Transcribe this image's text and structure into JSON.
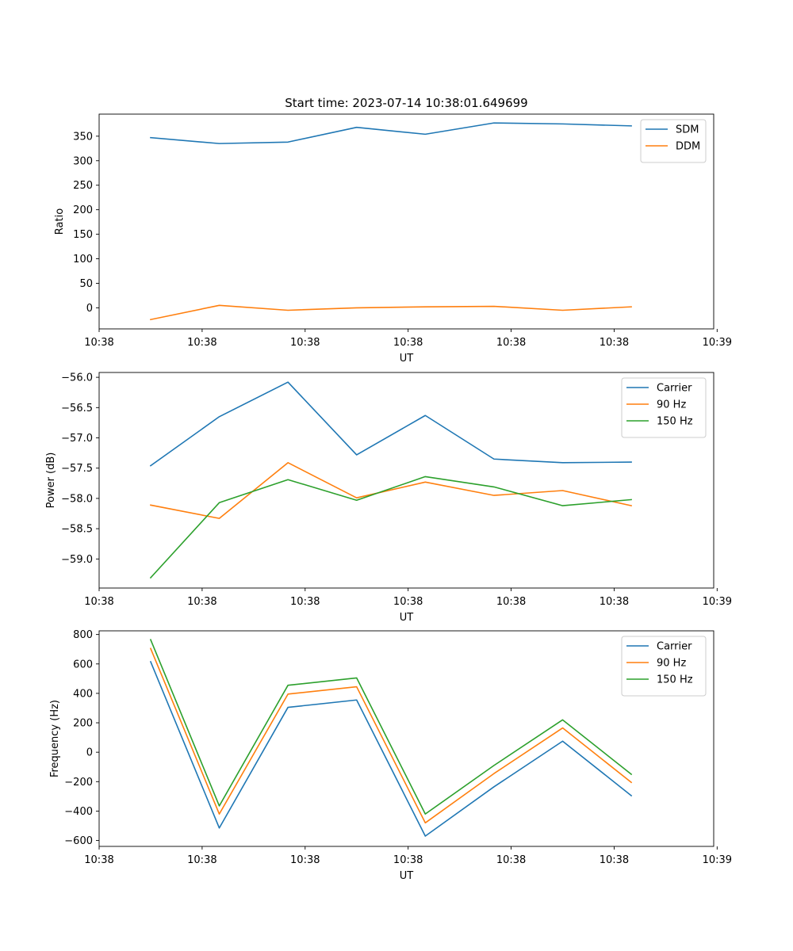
{
  "chart_data": [
    {
      "type": "line",
      "title": "Start time: 2023-07-14 10:38:01.649699",
      "xlabel": "UT",
      "ylabel": "Ratio",
      "x": [
        0,
        1,
        2,
        3,
        4,
        5,
        6,
        7
      ],
      "xlim": [
        -0.75,
        8.2
      ],
      "xticks": [
        -0.75,
        0.75,
        2.25,
        3.75,
        5.25,
        6.75,
        8.25
      ],
      "xtick_labels": [
        "10:38",
        "10:38",
        "10:38",
        "10:38",
        "10:38",
        "10:38",
        "10:39"
      ],
      "ylim": [
        -43,
        395
      ],
      "yticks": [
        0,
        50,
        100,
        150,
        200,
        250,
        300,
        350
      ],
      "legend": "top-right",
      "series": [
        {
          "name": "SDM",
          "color": "#1f77b4",
          "values": [
            347,
            335,
            338,
            368,
            354,
            377,
            375,
            371
          ]
        },
        {
          "name": "DDM",
          "color": "#ff7f0e",
          "values": [
            -24,
            5,
            -5,
            0,
            2,
            3,
            -5,
            2
          ]
        }
      ]
    },
    {
      "type": "line",
      "title": "",
      "xlabel": "UT",
      "ylabel": "Power (dB)",
      "x": [
        0,
        1,
        2,
        3,
        4,
        5,
        6,
        7
      ],
      "xlim": [
        -0.75,
        8.2
      ],
      "xticks": [
        -0.75,
        0.75,
        2.25,
        3.75,
        5.25,
        6.75,
        8.25
      ],
      "xtick_labels": [
        "10:38",
        "10:38",
        "10:38",
        "10:38",
        "10:38",
        "10:38",
        "10:39"
      ],
      "ylim": [
        -59.48,
        -55.92
      ],
      "yticks": [
        -56.0,
        -56.5,
        -57.0,
        -57.5,
        -58.0,
        -58.5,
        -59.0
      ],
      "ytick_labels": [
        "−56.0",
        "−56.5",
        "−57.0",
        "−57.5",
        "−58.0",
        "−58.5",
        "−59.0"
      ],
      "legend": "top-right",
      "series": [
        {
          "name": "Carrier",
          "color": "#1f77b4",
          "values": [
            -57.46,
            -56.65,
            -56.08,
            -57.28,
            -56.63,
            -57.35,
            -57.41,
            -57.4
          ]
        },
        {
          "name": "90 Hz",
          "color": "#ff7f0e",
          "values": [
            -58.11,
            -58.33,
            -57.41,
            -57.99,
            -57.73,
            -57.95,
            -57.87,
            -58.12
          ]
        },
        {
          "name": "150 Hz",
          "color": "#2ca02c",
          "values": [
            -59.31,
            -58.07,
            -57.69,
            -58.03,
            -57.64,
            -57.81,
            -58.12,
            -58.02
          ]
        }
      ]
    },
    {
      "type": "line",
      "title": "",
      "xlabel": "UT",
      "ylabel": "Frequency (Hz)",
      "x": [
        0,
        1,
        2,
        3,
        4,
        5,
        6,
        7
      ],
      "xlim": [
        -0.75,
        8.2
      ],
      "xticks": [
        -0.75,
        0.75,
        2.25,
        3.75,
        5.25,
        6.75,
        8.25
      ],
      "xtick_labels": [
        "10:38",
        "10:38",
        "10:38",
        "10:38",
        "10:38",
        "10:38",
        "10:39"
      ],
      "ylim": [
        -640,
        825
      ],
      "yticks": [
        800,
        600,
        400,
        200,
        0,
        -200,
        -400,
        -600
      ],
      "ytick_labels": [
        "800",
        "600",
        "400",
        "200",
        "0",
        "−200",
        "−400",
        "−600"
      ],
      "legend": "top-right",
      "series": [
        {
          "name": "Carrier",
          "color": "#1f77b4",
          "values": [
            615,
            -515,
            305,
            355,
            -570,
            -235,
            75,
            -295
          ]
        },
        {
          "name": "90 Hz",
          "color": "#ff7f0e",
          "values": [
            705,
            -420,
            395,
            445,
            -480,
            -145,
            165,
            -205
          ]
        },
        {
          "name": "150 Hz",
          "color": "#2ca02c",
          "values": [
            765,
            -365,
            455,
            505,
            -420,
            -90,
            220,
            -150
          ]
        }
      ]
    }
  ]
}
